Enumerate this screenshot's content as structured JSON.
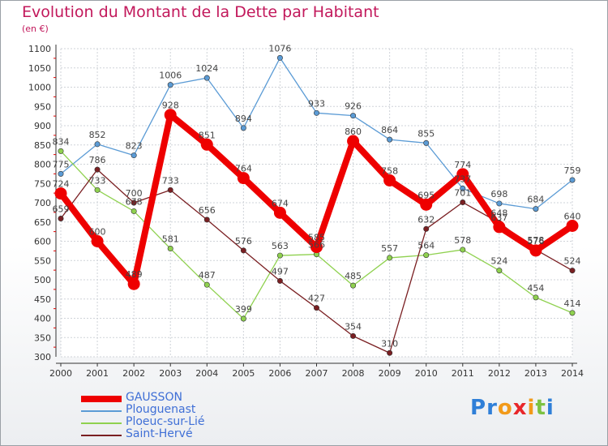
{
  "chart_data": {
    "type": "line",
    "title": "Evolution du Montant de la Dette par Habitant",
    "subtitle": "(en €)",
    "x": [
      "2000",
      "2001",
      "2002",
      "2003",
      "2004",
      "2005",
      "2006",
      "2007",
      "2008",
      "2009",
      "2010",
      "2011",
      "2012",
      "2013",
      "2014"
    ],
    "yticks": [
      300,
      350,
      400,
      450,
      500,
      550,
      600,
      650,
      700,
      750,
      800,
      850,
      900,
      950,
      1000,
      1050,
      1100
    ],
    "ylim": [
      300,
      1100
    ],
    "grid": true,
    "legend_position": "bottom-left",
    "series": [
      {
        "name": "GAUSSON",
        "color": "#ee0000",
        "values": [
          724,
          600,
          489,
          928,
          851,
          764,
          674,
          585,
          860,
          758,
          695,
          774,
          637,
          576,
          640
        ]
      },
      {
        "name": "Plouguenast",
        "color": "#5b9bd5",
        "values": [
          775,
          852,
          823,
          1006,
          1024,
          894,
          1076,
          933,
          926,
          864,
          855,
          737,
          698,
          684,
          759
        ]
      },
      {
        "name": "Ploeuc-sur-Lié",
        "color": "#8fd14f",
        "values": [
          834,
          733,
          678,
          581,
          487,
          399,
          563,
          566,
          485,
          557,
          564,
          578,
          524,
          454,
          414
        ]
      },
      {
        "name": "Saint-Hervé",
        "color": "#7a1f22",
        "values": [
          659,
          786,
          700,
          733,
          656,
          576,
          497,
          427,
          354,
          310,
          632,
          701,
          648,
          578,
          524
        ]
      }
    ]
  },
  "logo": {
    "text": "Proxiti",
    "letters": [
      "P",
      "r",
      "o",
      "x",
      "i",
      "t",
      "i"
    ],
    "colors": [
      "#2f7fd8",
      "#2f7fd8",
      "#f29a1a",
      "#e8262a",
      "#f29a1a",
      "#7cc242",
      "#2f7fd8"
    ]
  }
}
